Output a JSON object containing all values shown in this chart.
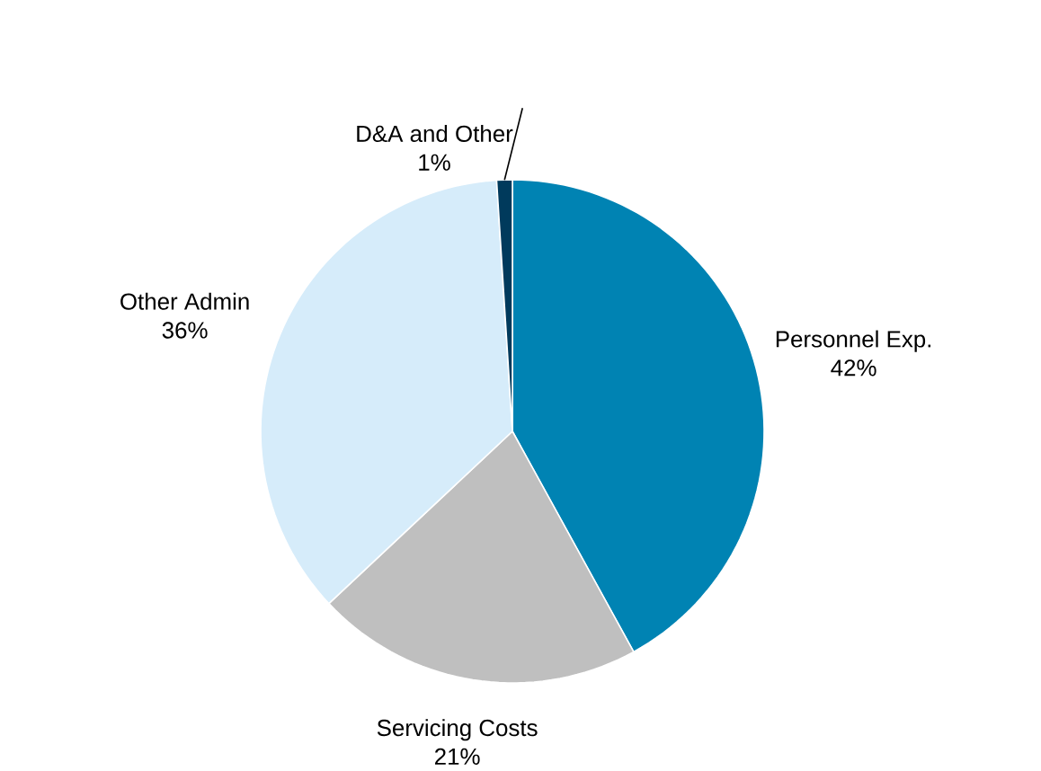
{
  "chart_data": {
    "type": "pie",
    "categories": [
      "Personnel Exp.",
      "Servicing Costs",
      "Other Admin",
      "D&A and Other"
    ],
    "values": [
      42,
      21,
      36,
      1
    ],
    "colors": [
      "#0083b3",
      "#bfbfbf",
      "#d6ecfa",
      "#003a5c"
    ],
    "value_labels": [
      "42%",
      "21%",
      "36%",
      "1%"
    ]
  }
}
